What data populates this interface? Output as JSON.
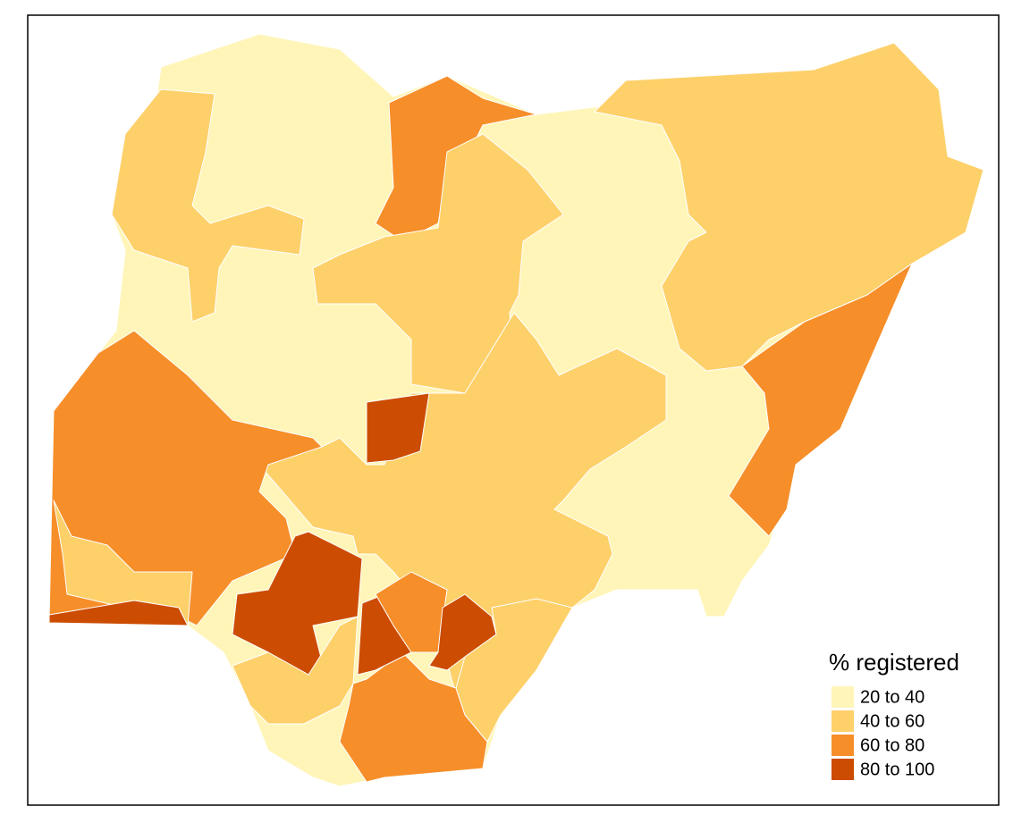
{
  "legend": {
    "title": "% registered",
    "items": [
      {
        "label": "20 to 40",
        "color": "#FFF5B9"
      },
      {
        "label": "40 to 60",
        "color": "#FDD06A"
      },
      {
        "label": "60 to 80",
        "color": "#F68E2A"
      },
      {
        "label": "80 to 100",
        "color": "#CC4C02"
      }
    ]
  }
}
